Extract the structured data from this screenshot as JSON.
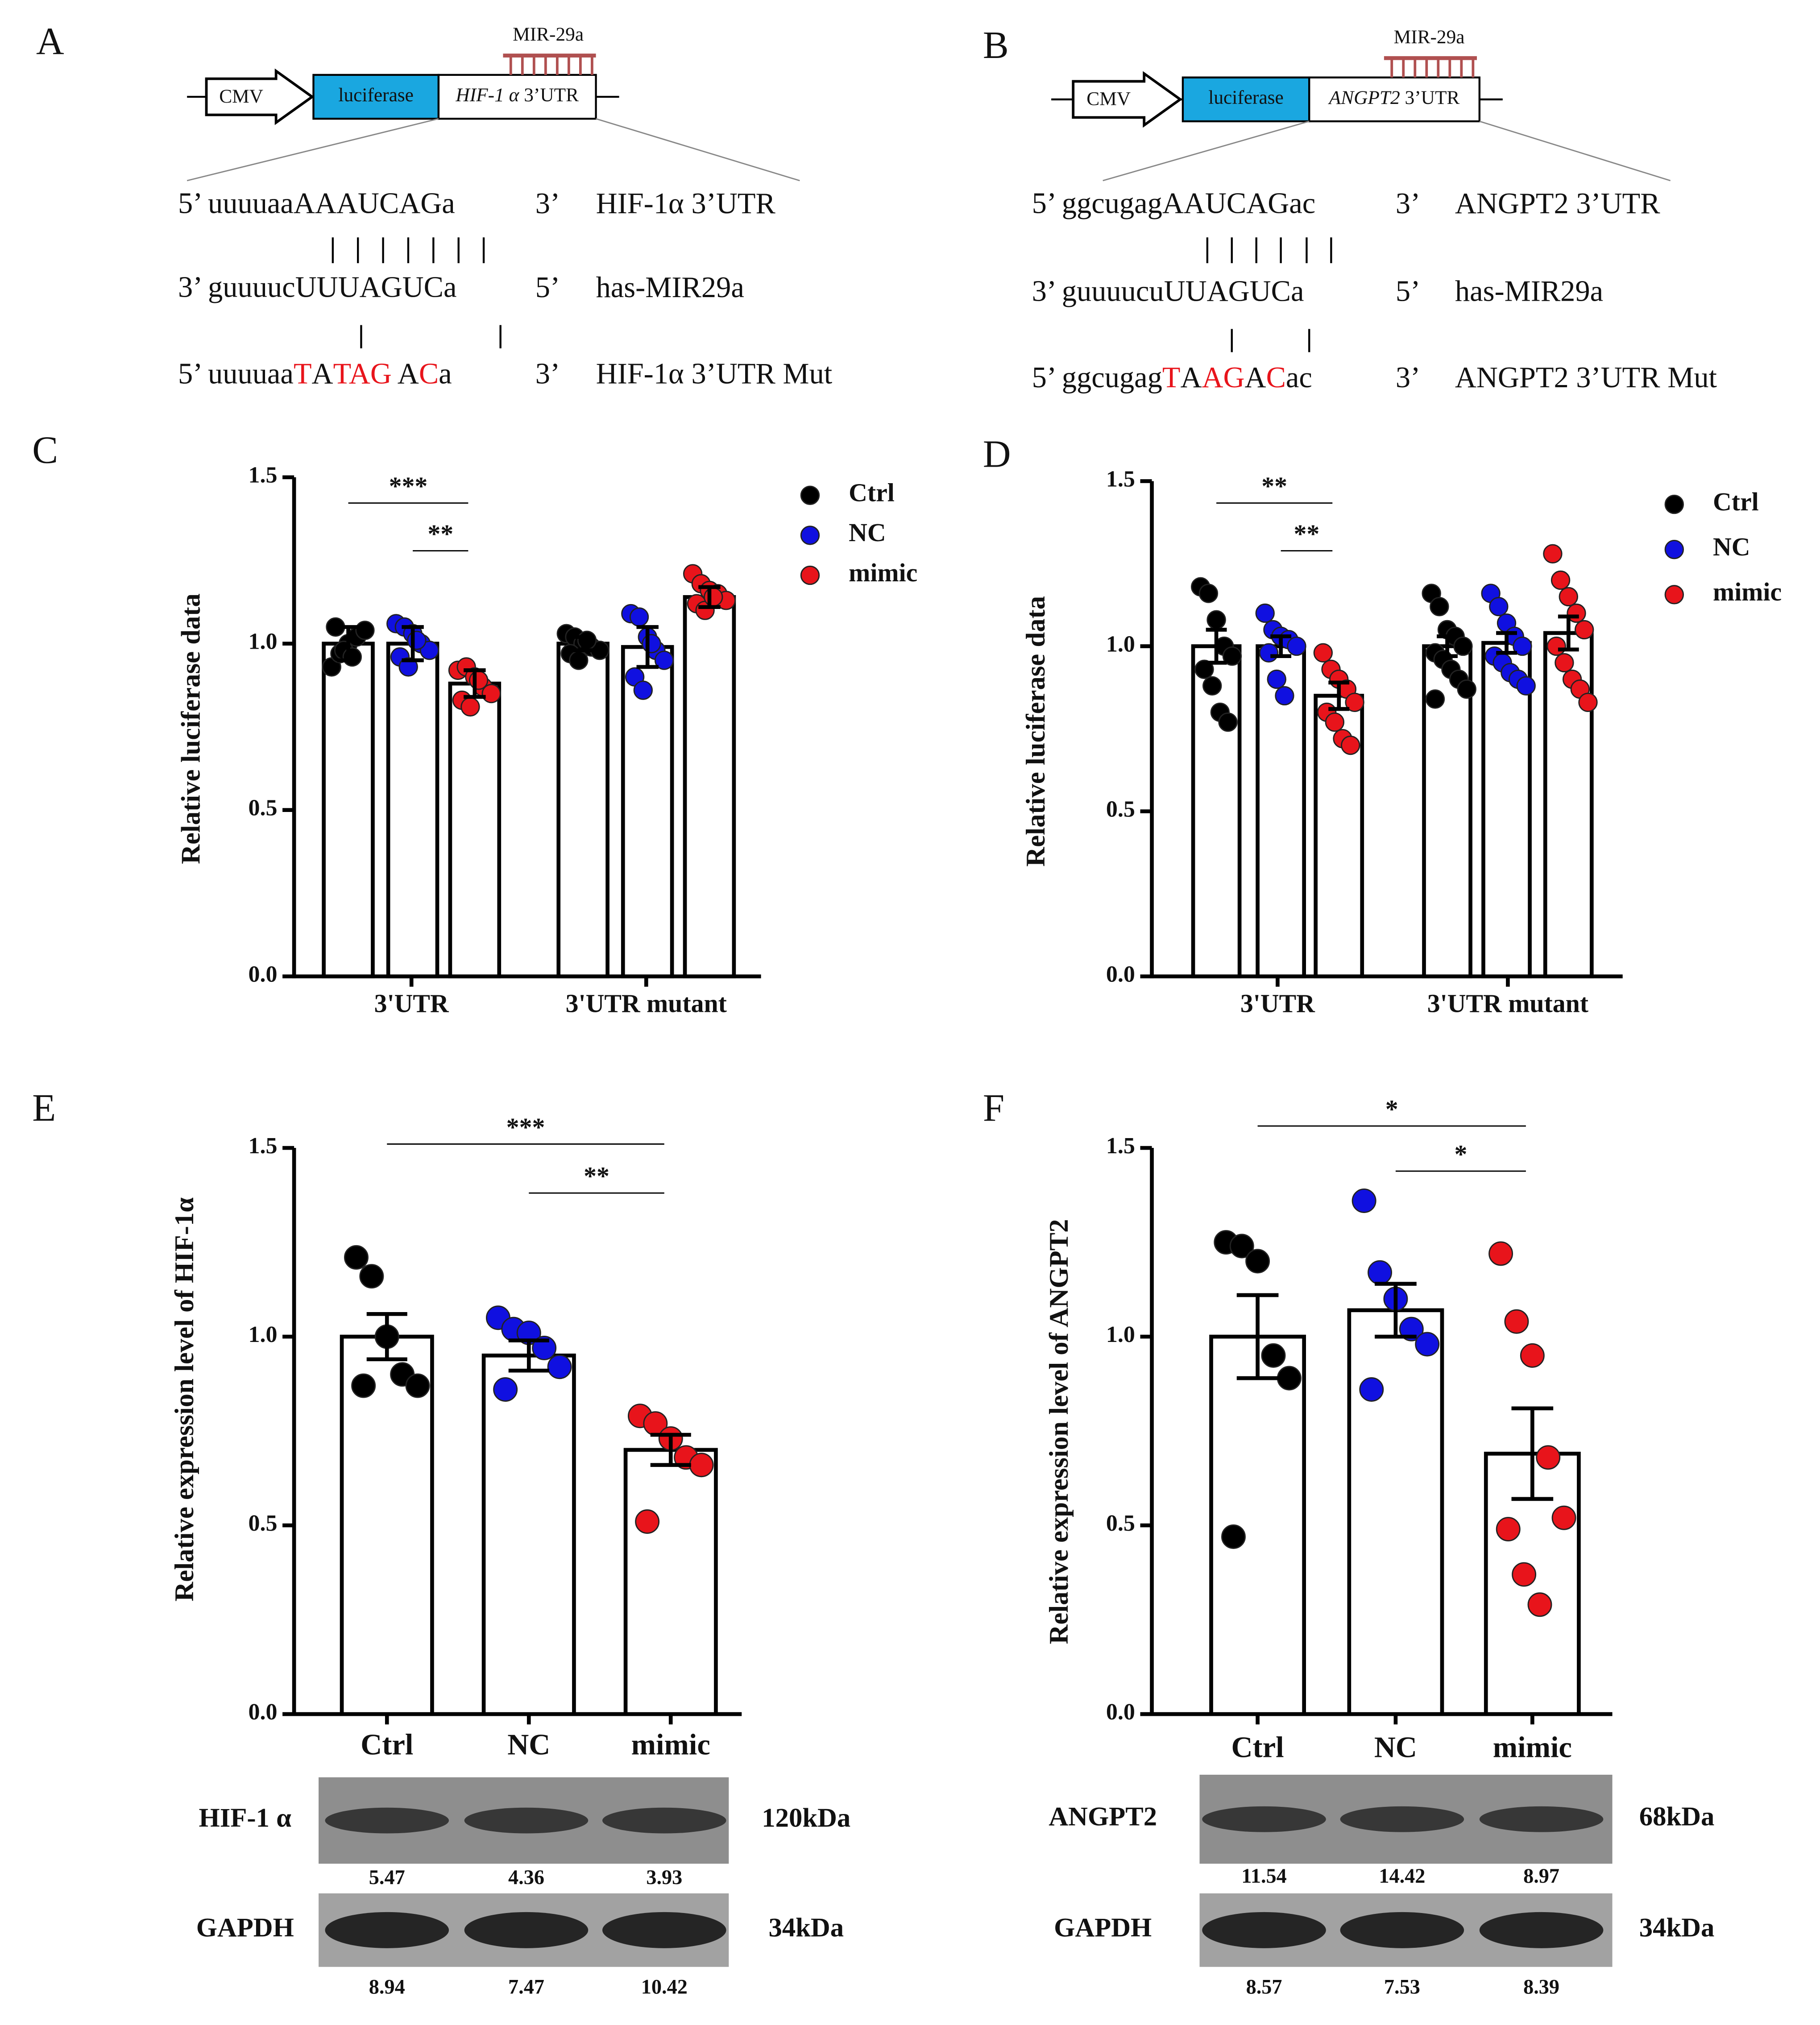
{
  "panels": [
    "A",
    "B",
    "C",
    "D",
    "E",
    "F"
  ],
  "diagrams": [
    {
      "promoter": "CMV",
      "reporter": "luciferase",
      "gene": "HIF-1 α",
      "region": "3’UTR",
      "mirna": "MIR-29a",
      "rows": [
        {
          "parts": [
            {
              "text": "5’ uuuuaaAAAUCAGa"
            }
          ],
          "end": "3’",
          "name": "HIF-1α  3’UTR"
        },
        {
          "parts": [
            {
              "text": "3’ guuuucUUUAGUCa"
            }
          ],
          "end": "5’",
          "name": "has-MIR29a"
        },
        {
          "parts": [
            {
              "text": "5’ uuuuaa"
            },
            {
              "text": "T",
              "color": "#e8141b"
            },
            {
              "text": "A"
            },
            {
              "text": "TAG",
              "color": "#e8141b"
            },
            {
              "text": " A"
            },
            {
              "text": "C",
              "color": "#e8141b"
            },
            {
              "text": "a"
            }
          ],
          "end": "3’",
          "name": "HIF-1α  3’UTR Mut"
        }
      ]
    },
    {
      "promoter": "CMV",
      "reporter": "luciferase",
      "gene": "ANGPT2",
      "region": "3’UTR",
      "mirna": "MIR-29a",
      "rows": [
        {
          "parts": [
            {
              "text": "5’ ggcugagAAUCAGac"
            }
          ],
          "end": "3’",
          "name": "ANGPT2  3’UTR"
        },
        {
          "parts": [
            {
              "text": "3’ guuuucuUUAGUCa"
            }
          ],
          "end": "5’",
          "name": "has-MIR29a"
        },
        {
          "parts": [
            {
              "text": "5’ ggcugag"
            },
            {
              "text": "T",
              "color": "#e8141b"
            },
            {
              "text": "A"
            },
            {
              "text": "AG",
              "color": "#e8141b"
            },
            {
              "text": "A"
            },
            {
              "text": "C",
              "color": "#e8141b"
            },
            {
              "text": "ac"
            }
          ],
          "end": "3’",
          "name": "ANGPT2  3’UTR Mut"
        }
      ]
    }
  ],
  "chart_data": [
    {
      "type": "bar",
      "ylabel": "Relative luciferase data",
      "ylim": [
        0,
        1.5
      ],
      "yticks": [
        {
          "value": 0,
          "label": "0.0"
        },
        {
          "value": 0.5,
          "label": "0.5"
        },
        {
          "value": 1,
          "label": "1.0"
        },
        {
          "value": 1.5,
          "label": "1.5"
        }
      ],
      "categories": [
        "3'UTR",
        "3'UTR mutant"
      ],
      "series": [
        {
          "name": "Ctrl",
          "color": "#000000",
          "values": [
            1.0,
            1.0
          ],
          "errors": [
            0.05,
            0.02
          ],
          "points": [
            [
              0.93,
              0.97,
              1.0,
              1.02,
              1.04,
              1.05,
              0.98,
              0.96
            ],
            [
              1.03,
              1.02,
              1.0,
              0.99,
              0.98,
              0.97,
              0.95,
              1.01
            ]
          ]
        },
        {
          "name": "NC",
          "color": "#1010e0",
          "values": [
            1.0,
            0.99
          ],
          "errors": [
            0.05,
            0.06
          ],
          "points": [
            [
              1.06,
              1.05,
              1.03,
              1.0,
              0.98,
              0.96,
              0.93,
              1.01
            ],
            [
              1.09,
              1.08,
              1.02,
              0.98,
              0.95,
              0.9,
              0.86,
              1.0
            ]
          ]
        },
        {
          "name": "mimic",
          "color": "#e8141b",
          "values": [
            0.88,
            1.14
          ],
          "errors": [
            0.04,
            0.03
          ],
          "points": [
            [
              0.92,
              0.93,
              0.9,
              0.87,
              0.85,
              0.83,
              0.81,
              0.89
            ],
            [
              1.21,
              1.18,
              1.16,
              1.15,
              1.13,
              1.12,
              1.1,
              1.14
            ]
          ]
        }
      ],
      "annotations": [
        {
          "text": "***",
          "group": 0,
          "from": 0,
          "to": 2
        },
        {
          "text": "**",
          "group": 0,
          "from": 1,
          "to": 2
        }
      ]
    },
    {
      "type": "bar",
      "ylabel": "Relative luciferase data",
      "ylim": [
        0,
        1.5
      ],
      "yticks": [
        {
          "value": 0,
          "label": "0.0"
        },
        {
          "value": 0.5,
          "label": "0.5"
        },
        {
          "value": 1,
          "label": "1.0"
        },
        {
          "value": 1.5,
          "label": "1.5"
        }
      ],
      "categories": [
        "3'UTR",
        "3'UTR mutant"
      ],
      "series": [
        {
          "name": "Ctrl",
          "color": "#000000",
          "values": [
            1.0,
            1.0
          ],
          "errors": [
            0.05,
            0.03
          ],
          "points": [
            [
              1.18,
              1.16,
              1.08,
              1.0,
              0.97,
              0.93,
              0.88,
              0.8,
              0.77
            ],
            [
              1.16,
              1.12,
              1.05,
              1.03,
              1.0,
              0.98,
              0.96,
              0.93,
              0.9,
              0.87,
              0.84
            ]
          ]
        },
        {
          "name": "NC",
          "color": "#1010e0",
          "values": [
            1.0,
            1.01
          ],
          "errors": [
            0.03,
            0.03
          ],
          "points": [
            [
              1.1,
              1.05,
              1.03,
              1.02,
              1.0,
              0.98,
              0.9,
              0.85
            ],
            [
              1.16,
              1.12,
              1.07,
              1.03,
              1.0,
              0.97,
              0.95,
              0.92,
              0.9,
              0.88
            ]
          ]
        },
        {
          "name": "mimic",
          "color": "#e8141b",
          "values": [
            0.85,
            1.04
          ],
          "errors": [
            0.04,
            0.05
          ],
          "points": [
            [
              0.98,
              0.93,
              0.9,
              0.87,
              0.83,
              0.8,
              0.77,
              0.72,
              0.7
            ],
            [
              1.28,
              1.2,
              1.15,
              1.1,
              1.05,
              1.0,
              0.95,
              0.9,
              0.87,
              0.83
            ]
          ]
        }
      ],
      "annotations": [
        {
          "text": "**",
          "group": 0,
          "from": 0,
          "to": 2
        },
        {
          "text": "**",
          "group": 0,
          "from": 1,
          "to": 2
        }
      ]
    },
    {
      "type": "bar",
      "ylabel": "Relative expression level of HIF-1α",
      "ylim": [
        0,
        1.5
      ],
      "yticks": [
        {
          "value": 0,
          "label": "0.0"
        },
        {
          "value": 0.5,
          "label": "0.5"
        },
        {
          "value": 1,
          "label": "1.0"
        },
        {
          "value": 1.5,
          "label": "1.5"
        }
      ],
      "categories": [
        "Ctrl",
        "NC",
        "mimic"
      ],
      "colors": [
        "#000000",
        "#1010e0",
        "#e8141b"
      ],
      "values": [
        1.0,
        0.95,
        0.7
      ],
      "errors": [
        0.06,
        0.04,
        0.04
      ],
      "points": [
        [
          1.21,
          1.16,
          1.0,
          0.9,
          0.87,
          0.87
        ],
        [
          1.05,
          1.02,
          1.01,
          0.97,
          0.92,
          0.86
        ],
        [
          0.79,
          0.77,
          0.73,
          0.68,
          0.66,
          0.51
        ]
      ],
      "annotations": [
        {
          "text": "***",
          "from": 0,
          "to": 2
        },
        {
          "text": "**",
          "from": 1,
          "to": 2
        }
      ]
    },
    {
      "type": "bar",
      "ylabel": "Relative expression level of ANGPT2",
      "ylim": [
        0,
        1.5
      ],
      "yticks": [
        {
          "value": 0,
          "label": "0.0"
        },
        {
          "value": 0.5,
          "label": "0.5"
        },
        {
          "value": 1,
          "label": "1.0"
        },
        {
          "value": 1.5,
          "label": "1.5"
        }
      ],
      "categories": [
        "Ctrl",
        "NC",
        "mimic"
      ],
      "colors": [
        "#000000",
        "#1010e0",
        "#e8141b"
      ],
      "values": [
        1.0,
        1.07,
        0.69
      ],
      "errors": [
        0.11,
        0.07,
        0.12
      ],
      "points": [
        [
          1.25,
          1.24,
          1.2,
          0.95,
          0.89,
          0.47
        ],
        [
          1.36,
          1.17,
          1.1,
          1.02,
          0.98,
          0.86
        ],
        [
          1.22,
          1.04,
          0.95,
          0.68,
          0.52,
          0.49,
          0.37,
          0.29
        ]
      ],
      "annotations": [
        {
          "text": "*",
          "from": 0,
          "to": 2
        },
        {
          "text": "*",
          "from": 1,
          "to": 2
        }
      ]
    }
  ],
  "blots": [
    {
      "rows": [
        {
          "protein": "HIF-1 α",
          "size": "120kDa",
          "values": [
            "5.47",
            "4.36",
            "3.93"
          ]
        },
        {
          "protein": "GAPDH",
          "size": "34kDa",
          "values": [
            "8.94",
            "7.47",
            "10.42"
          ]
        }
      ]
    },
    {
      "rows": [
        {
          "protein": "ANGPT2",
          "size": "68kDa",
          "values": [
            "11.54",
            "14.42",
            "8.97"
          ]
        },
        {
          "protein": "GAPDH",
          "size": "34kDa",
          "values": [
            "8.57",
            "7.53",
            "8.39"
          ]
        }
      ]
    }
  ]
}
